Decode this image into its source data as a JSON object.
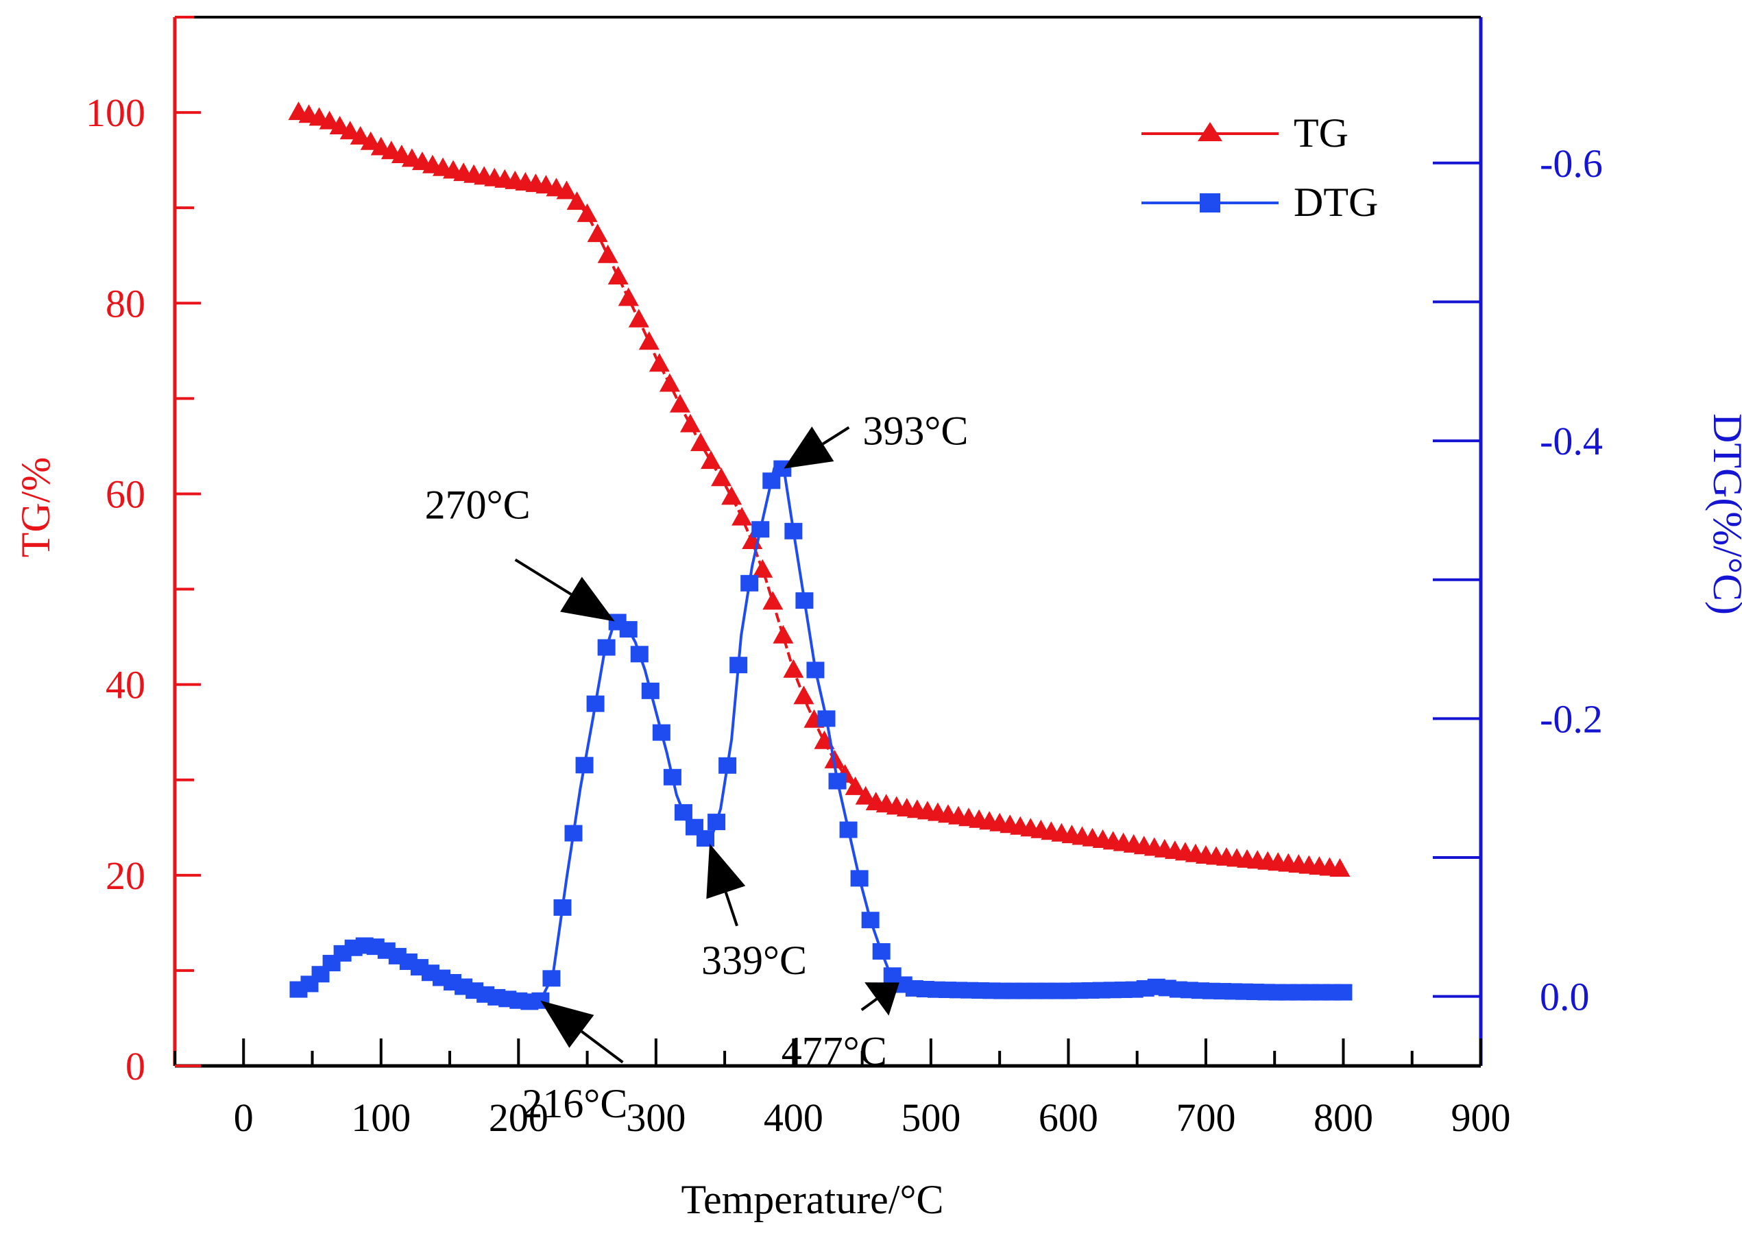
{
  "chart_data": {
    "type": "line",
    "x_axis": {
      "label": "Temperature/°C",
      "range": [
        -50,
        900
      ],
      "major_ticks": [
        0,
        100,
        200,
        300,
        400,
        500,
        600,
        700,
        800,
        900
      ],
      "tick_labels": [
        "0",
        "100",
        "200",
        "300",
        "400",
        "500",
        "600",
        "700",
        "800",
        "900"
      ],
      "color": "#000000"
    },
    "y_axis_left": {
      "label": "TG/%",
      "range": [
        0,
        110
      ],
      "major_ticks": [
        0,
        20,
        40,
        60,
        80,
        100
      ],
      "tick_labels": [
        "0",
        "20",
        "40",
        "60",
        "80",
        "100"
      ],
      "color": "#e8141a"
    },
    "y_axis_right": {
      "label": "DTG(%/°C)",
      "range_bottom_to_top": [
        0.05,
        -0.705
      ],
      "major_ticks": [
        0.0,
        -0.2,
        -0.4,
        -0.6
      ],
      "tick_labels": [
        "0.0",
        "-0.2",
        "-0.4",
        "-0.6"
      ],
      "color": "#1414d2"
    },
    "legend": {
      "position": "top-right",
      "entries": [
        {
          "name": "TG",
          "marker": "triangle",
          "color": "#e8141a"
        },
        {
          "name": "DTG",
          "marker": "square",
          "color": "#1f4cf0"
        }
      ]
    },
    "series": [
      {
        "name": "TG",
        "axis": "left",
        "color": "#e8141a",
        "marker": "triangle",
        "x": [
          40,
          60,
          80,
          100,
          120,
          140,
          160,
          180,
          200,
          220,
          235,
          245,
          250,
          260,
          270,
          280,
          290,
          300,
          310,
          320,
          330,
          340,
          350,
          360,
          370,
          380,
          390,
          400,
          410,
          420,
          430,
          440,
          450,
          460,
          470,
          480,
          500,
          550,
          600,
          650,
          700,
          750,
          800
        ],
        "values": [
          100,
          99.2,
          97.8,
          96.3,
          95.2,
          94.3,
          93.6,
          93.1,
          92.7,
          92.3,
          91.7,
          90.2,
          89.3,
          86.5,
          83.5,
          80.5,
          77.5,
          74.3,
          71.5,
          68.6,
          65.9,
          63.4,
          61.0,
          58.3,
          55.0,
          51.0,
          46.3,
          41.5,
          37.8,
          34.7,
          32.0,
          30.0,
          28.4,
          27.6,
          27.3,
          27.0,
          26.6,
          25.4,
          24.2,
          23.1,
          22.0,
          21.3,
          20.6
        ]
      },
      {
        "name": "DTG",
        "axis": "right",
        "color": "#1f4cf0",
        "marker": "square",
        "x": [
          40,
          50,
          60,
          70,
          80,
          90,
          100,
          110,
          120,
          140,
          160,
          180,
          200,
          210,
          216,
          225,
          235,
          245,
          255,
          262,
          270,
          278,
          285,
          292,
          300,
          308,
          315,
          323,
          331,
          339,
          347,
          355,
          362,
          370,
          378,
          386,
          393,
          400,
          408,
          416,
          424,
          432,
          440,
          448,
          456,
          463,
          470,
          477,
          485,
          500,
          550,
          600,
          650,
          665,
          680,
          700,
          750,
          800
        ],
        "values": [
          -0.005,
          -0.01,
          -0.02,
          -0.03,
          -0.035,
          -0.037,
          -0.035,
          -0.03,
          -0.025,
          -0.015,
          -0.007,
          0.0,
          0.003,
          0.004,
          0.003,
          -0.015,
          -0.085,
          -0.15,
          -0.205,
          -0.245,
          -0.27,
          -0.268,
          -0.255,
          -0.235,
          -0.205,
          -0.175,
          -0.145,
          -0.125,
          -0.12,
          -0.11,
          -0.135,
          -0.185,
          -0.26,
          -0.31,
          -0.345,
          -0.38,
          -0.38,
          -0.335,
          -0.285,
          -0.235,
          -0.2,
          -0.155,
          -0.12,
          -0.085,
          -0.055,
          -0.035,
          -0.017,
          -0.01,
          -0.006,
          -0.005,
          -0.004,
          -0.004,
          -0.005,
          -0.007,
          -0.005,
          -0.004,
          -0.003,
          -0.003
        ]
      }
    ],
    "annotations": [
      {
        "text": "216°C",
        "x": 216,
        "series": "DTG"
      },
      {
        "text": "270°C",
        "x": 270,
        "series": "DTG"
      },
      {
        "text": "339°C",
        "x": 339,
        "series": "DTG"
      },
      {
        "text": "393°C",
        "x": 393,
        "series": "DTG"
      },
      {
        "text": "477°C",
        "x": 477,
        "series": "DTG"
      }
    ]
  }
}
